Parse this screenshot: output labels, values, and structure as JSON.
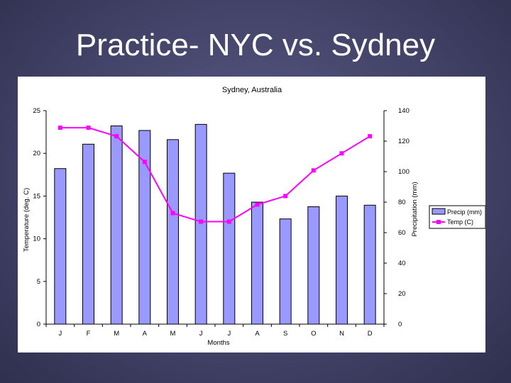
{
  "slide": {
    "title": "Practice- NYC vs. Sydney"
  },
  "chart_data": {
    "type": "bar+line",
    "title": "Sydney, Australia",
    "categories": [
      "J",
      "F",
      "M",
      "A",
      "M",
      "J",
      "J",
      "A",
      "S",
      "O",
      "N",
      "D"
    ],
    "xlabel": "Months",
    "ylabel_left": "Temperature (deg. C)",
    "ylabel_right": "Precipitation (mm)",
    "ylim_left": [
      0,
      25
    ],
    "yticks_left": [
      0,
      5,
      10,
      15,
      20,
      25
    ],
    "ylim_right": [
      0,
      140
    ],
    "yticks_right": [
      0,
      20,
      40,
      60,
      80,
      100,
      120,
      140
    ],
    "series": [
      {
        "name": "Precip (mm)",
        "type": "bar",
        "axis": "right",
        "color": "#9999ff",
        "values": [
          102,
          118,
          130,
          127,
          121,
          131,
          99,
          80,
          69,
          77,
          84,
          78
        ]
      },
      {
        "name": "Temp (C)",
        "type": "line",
        "axis": "left",
        "color": "#ff00ff",
        "values": [
          23,
          23,
          22,
          19,
          13,
          12,
          12,
          14,
          15,
          18,
          20,
          22
        ]
      }
    ],
    "legend_position": "right",
    "grid": false
  }
}
